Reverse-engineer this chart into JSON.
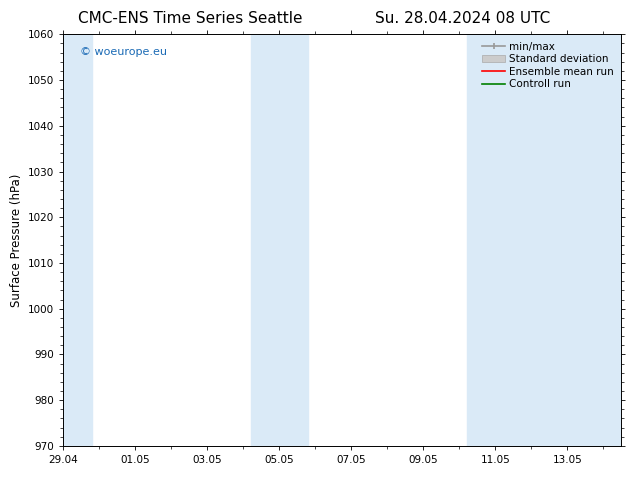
{
  "title_left": "CMC-ENS Time Series Seattle",
  "title_right": "Su. 28.04.2024 08 UTC",
  "ylabel": "Surface Pressure (hPa)",
  "ylim": [
    970,
    1060
  ],
  "yticks": [
    970,
    980,
    990,
    1000,
    1010,
    1020,
    1030,
    1040,
    1050,
    1060
  ],
  "xtick_labels": [
    "29.04",
    "01.05",
    "03.05",
    "05.05",
    "07.05",
    "09.05",
    "11.05",
    "13.05"
  ],
  "xtick_positions": [
    0,
    2,
    4,
    6,
    8,
    10,
    12,
    14
  ],
  "xlim": [
    0,
    15.5
  ],
  "background_color": "#ffffff",
  "plot_bg_color": "#ffffff",
  "shaded_color": "#daeaf7",
  "watermark_text": "© woeurope.eu",
  "watermark_color": "#1a6ab5",
  "shaded_bands": [
    {
      "x_start": -0.1,
      "x_end": 0.8
    },
    {
      "x_start": 5.2,
      "x_end": 6.8
    },
    {
      "x_start": 11.2,
      "x_end": 15.6
    }
  ],
  "title_fontsize": 11,
  "tick_fontsize": 7.5,
  "ylabel_fontsize": 8.5,
  "legend_fontsize": 7.5
}
